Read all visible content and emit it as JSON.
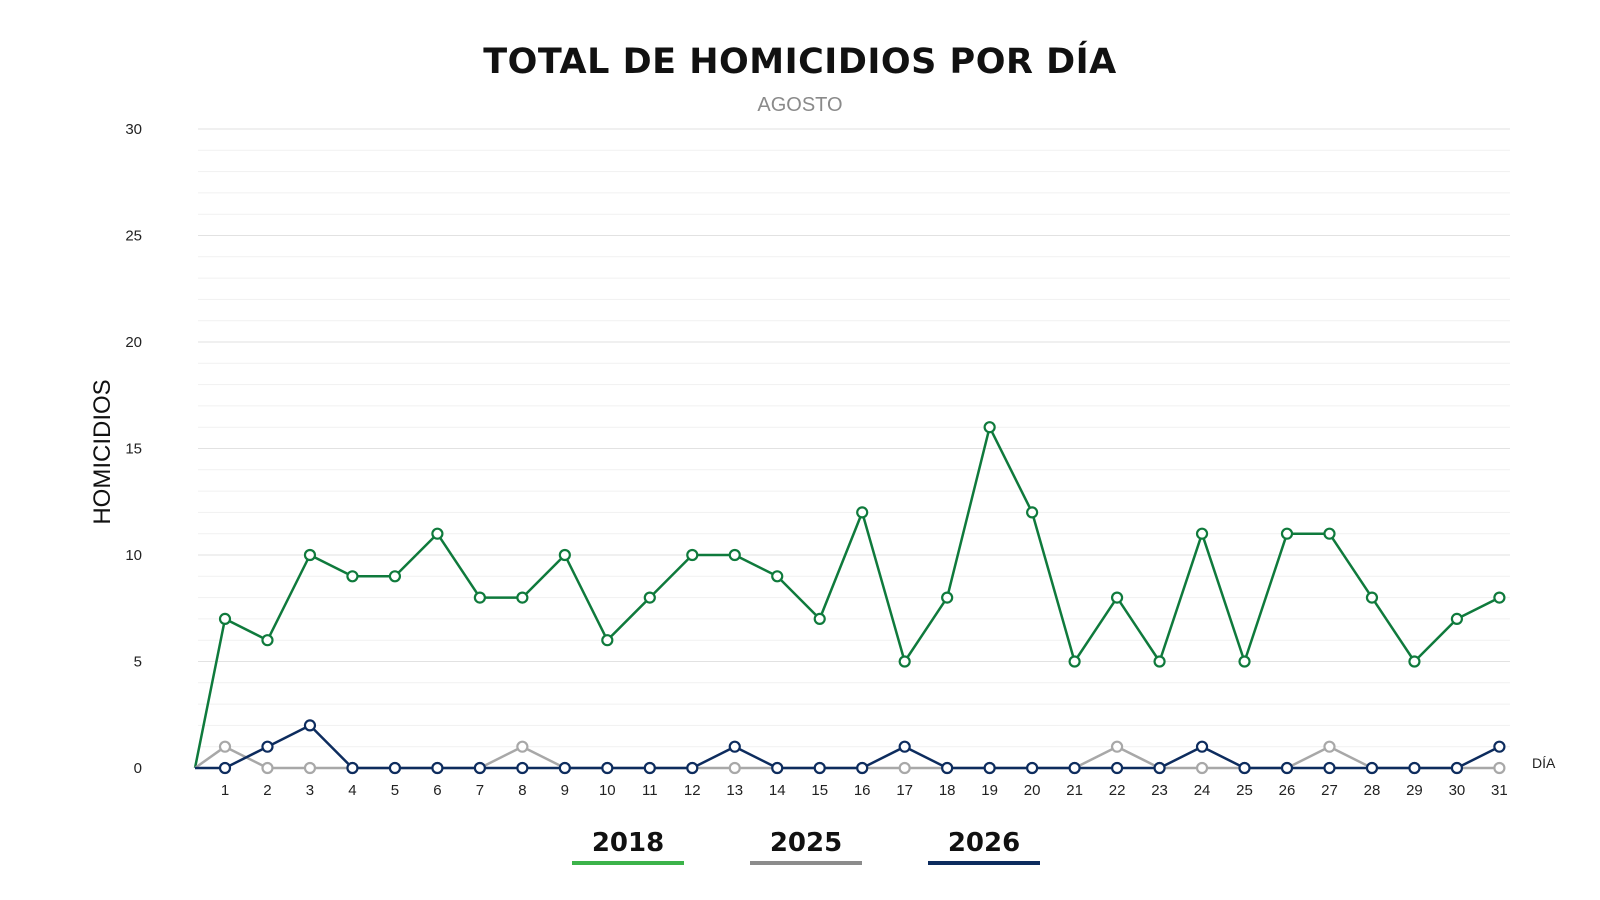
{
  "chart_data": {
    "type": "line",
    "title": "TOTAL DE HOMICIDIOS POR DÍA",
    "subtitle": "AGOSTO",
    "xlabel": "DÍA",
    "ylabel": "HOMICIDIOS",
    "ylim": [
      0,
      30
    ],
    "yticks": [
      0,
      5,
      10,
      15,
      20,
      25,
      30
    ],
    "grid": true,
    "legend_position": "bottom",
    "x": [
      1,
      2,
      3,
      4,
      5,
      6,
      7,
      8,
      9,
      10,
      11,
      12,
      13,
      14,
      15,
      16,
      17,
      18,
      19,
      20,
      21,
      22,
      23,
      24,
      25,
      26,
      27,
      28,
      29,
      30,
      31
    ],
    "series": [
      {
        "name": "2018",
        "color": "#0f7a3c",
        "legend_color": "#3cb34a",
        "values": [
          7,
          6,
          10,
          9,
          9,
          11,
          8,
          8,
          10,
          6,
          8,
          10,
          10,
          9,
          7,
          12,
          5,
          8,
          16,
          12,
          5,
          8,
          5,
          11,
          5,
          11,
          11,
          8,
          5,
          7,
          8
        ]
      },
      {
        "name": "2025",
        "color": "#a8a8a8",
        "legend_color": "#8c8c8c",
        "values": [
          1,
          0,
          0,
          0,
          0,
          0,
          0,
          1,
          0,
          0,
          0,
          0,
          0,
          0,
          0,
          0,
          0,
          0,
          0,
          0,
          0,
          1,
          0,
          0,
          0,
          0,
          1,
          0,
          0,
          0,
          0
        ]
      },
      {
        "name": "2026",
        "color": "#0d2c5e",
        "legend_color": "#0d2c5e",
        "values": [
          0,
          1,
          2,
          0,
          0,
          0,
          0,
          0,
          0,
          0,
          0,
          0,
          1,
          0,
          0,
          0,
          1,
          0,
          0,
          0,
          0,
          0,
          0,
          1,
          0,
          0,
          0,
          0,
          0,
          0,
          1
        ]
      }
    ]
  }
}
